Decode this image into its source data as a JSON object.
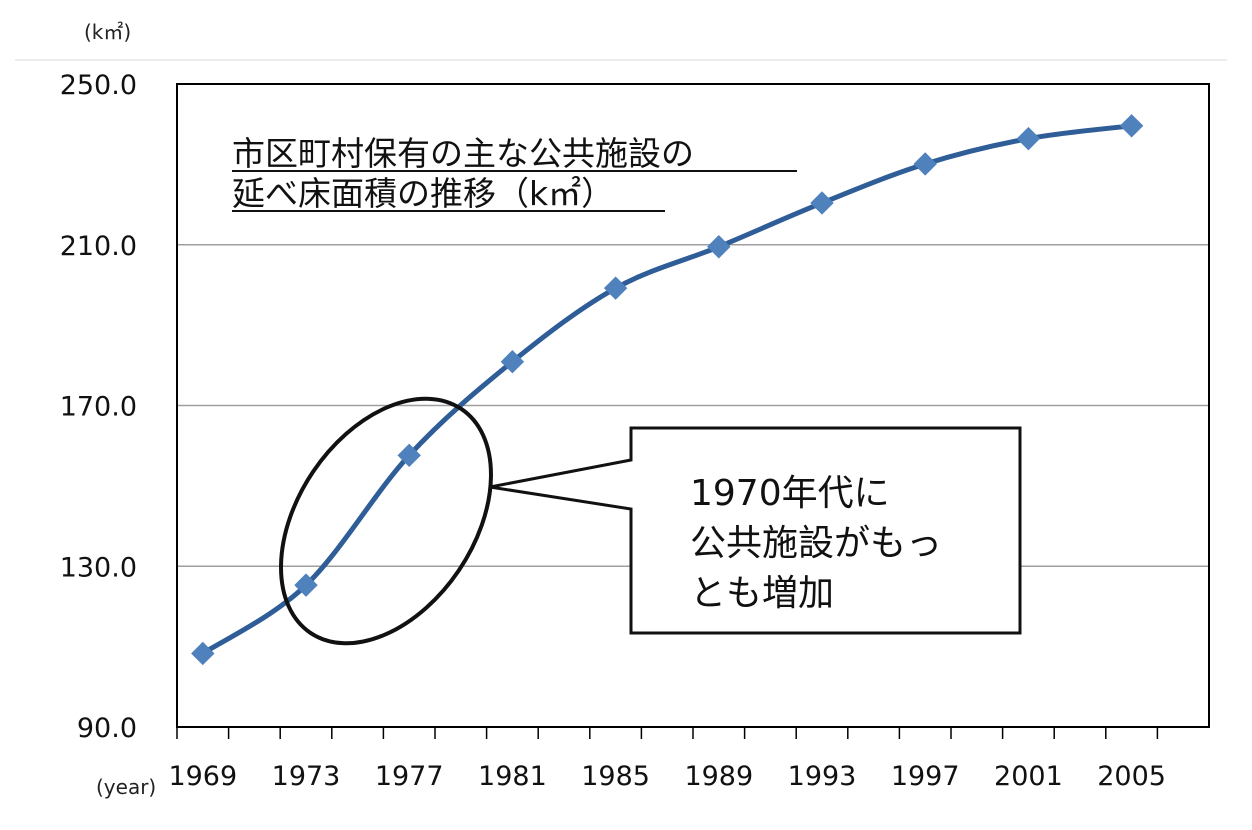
{
  "chart_data": {
    "type": "line",
    "title": "市区町村保有の主な公共施設の延べ床面積の推移（k㎡）",
    "title_lines": [
      "市区町村保有の主な公共施設の",
      "延べ床面積の推移（k㎡）"
    ],
    "xlabel": "(year)",
    "ylabel": "(k㎡)",
    "categories": [
      "1969",
      "1973",
      "1977",
      "1981",
      "1985",
      "1989",
      "1993",
      "1997",
      "2001",
      "2005"
    ],
    "x": [
      1969,
      1971,
      1973,
      1975,
      1977,
      1979,
      1981,
      1983,
      1985,
      1987,
      1989,
      1991,
      1993,
      1995,
      1997,
      1999,
      2001,
      2003,
      2005,
      2007
    ],
    "ylim": [
      90,
      250
    ],
    "yticks": [
      "90.0",
      "130.0",
      "170.0",
      "210.0",
      "250.0"
    ],
    "grid": true,
    "series": [
      {
        "x": [
          1970,
          1974,
          1978,
          1982,
          1986,
          1990,
          1994,
          1998,
          2002,
          2006
        ],
        "values": [
          108.3,
          125.3,
          157.6,
          180.9,
          199.2,
          209.5,
          220.4,
          230.1,
          236.4,
          239.6
        ],
        "color": "#2f5d97",
        "marker_color": "#4f81bd"
      }
    ],
    "annotations": [
      {
        "type": "callout",
        "lines": [
          "1970年代に",
          "公共施設がもっ",
          "とも増加"
        ],
        "highlight_years": [
          1973,
          1977
        ]
      }
    ]
  }
}
